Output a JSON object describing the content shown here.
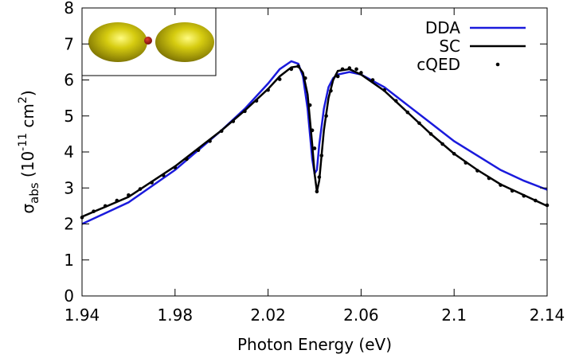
{
  "chart_data": {
    "type": "line",
    "xlabel": "Photon Energy (eV)",
    "ylabel_parts": [
      "σ",
      "abs",
      " (10",
      "-11",
      " cm",
      "2",
      ")"
    ],
    "xlim": [
      1.94,
      2.14
    ],
    "xticks": [
      1.94,
      1.98,
      2.02,
      2.06,
      2.1,
      2.14
    ],
    "ylim": [
      0,
      8
    ],
    "yticks": [
      0,
      1,
      2,
      3,
      4,
      5,
      6,
      7,
      8
    ],
    "grid": false,
    "legend": "upper-right",
    "series": [
      {
        "name": "DDA",
        "color": "#1a1adc",
        "style": "line",
        "x": [
          1.94,
          1.96,
          1.98,
          2.0,
          2.01,
          2.02,
          2.025,
          2.03,
          2.033,
          2.035,
          2.037,
          2.039,
          2.04,
          2.041,
          2.042,
          2.044,
          2.046,
          2.048,
          2.05,
          2.055,
          2.06,
          2.07,
          2.08,
          2.09,
          2.1,
          2.11,
          2.12,
          2.13,
          2.14
        ],
        "values": [
          2.0,
          2.6,
          3.5,
          4.6,
          5.2,
          5.9,
          6.3,
          6.52,
          6.45,
          6.1,
          5.2,
          3.8,
          3.4,
          3.5,
          4.2,
          5.2,
          5.8,
          6.05,
          6.15,
          6.22,
          6.15,
          5.8,
          5.3,
          4.8,
          4.3,
          3.9,
          3.5,
          3.2,
          2.95
        ]
      },
      {
        "name": "SC",
        "color": "#000000",
        "style": "line",
        "x": [
          1.94,
          1.96,
          1.98,
          2.0,
          2.01,
          2.02,
          2.025,
          2.03,
          2.033,
          2.035,
          2.037,
          2.039,
          2.04,
          2.041,
          2.042,
          2.044,
          2.046,
          2.048,
          2.05,
          2.055,
          2.06,
          2.07,
          2.08,
          2.09,
          2.1,
          2.11,
          2.12,
          2.13,
          2.14
        ],
        "values": [
          2.2,
          2.75,
          3.6,
          4.6,
          5.15,
          5.75,
          6.1,
          6.35,
          6.38,
          6.2,
          5.6,
          4.2,
          3.4,
          2.9,
          3.2,
          4.6,
          5.5,
          6.0,
          6.25,
          6.3,
          6.15,
          5.7,
          5.1,
          4.5,
          3.95,
          3.5,
          3.1,
          2.8,
          2.5
        ]
      },
      {
        "name": "cQED",
        "color": "#000000",
        "style": "dots",
        "x": [
          1.94,
          1.945,
          1.95,
          1.955,
          1.96,
          1.965,
          1.97,
          1.975,
          1.98,
          1.985,
          1.99,
          1.995,
          2.0,
          2.005,
          2.01,
          2.015,
          2.02,
          2.025,
          2.03,
          2.033,
          2.036,
          2.038,
          2.039,
          2.04,
          2.041,
          2.042,
          2.043,
          2.045,
          2.047,
          2.05,
          2.052,
          2.055,
          2.058,
          2.06,
          2.065,
          2.07,
          2.075,
          2.08,
          2.085,
          2.09,
          2.095,
          2.1,
          2.105,
          2.11,
          2.115,
          2.12,
          2.125,
          2.13,
          2.135,
          2.14
        ],
        "values": [
          2.18,
          2.35,
          2.5,
          2.65,
          2.8,
          2.97,
          3.15,
          3.35,
          3.57,
          3.8,
          4.05,
          4.3,
          4.58,
          4.85,
          5.13,
          5.42,
          5.72,
          6.02,
          6.3,
          6.38,
          6.05,
          5.3,
          4.6,
          4.1,
          2.9,
          3.3,
          3.9,
          5.0,
          5.7,
          6.1,
          6.3,
          6.33,
          6.3,
          6.2,
          6.0,
          5.72,
          5.42,
          5.1,
          4.8,
          4.5,
          4.22,
          3.95,
          3.7,
          3.48,
          3.27,
          3.08,
          2.92,
          2.78,
          2.65,
          2.52
        ]
      }
    ]
  }
}
